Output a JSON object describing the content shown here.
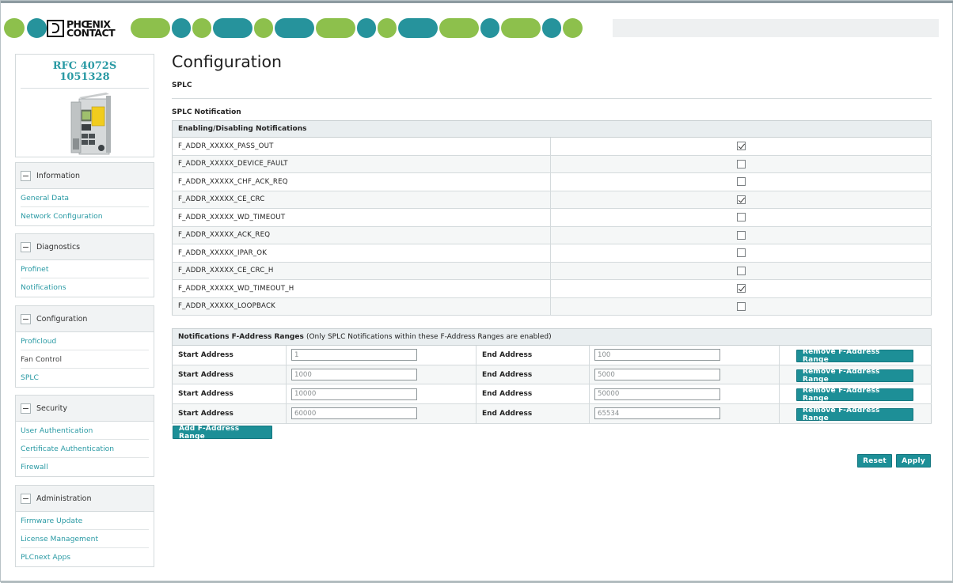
{
  "brand": {
    "logo_text_line1": "PHŒNIX",
    "logo_text_line2": "CONTACT",
    "colors": {
      "green": "#8dc04c",
      "teal": "#26939c",
      "link": "#2a9aa4",
      "button": "#1d8f97"
    }
  },
  "device": {
    "model": "RFC 4072S",
    "article": "1051328"
  },
  "sidebar": {
    "groups": [
      {
        "title": "Information",
        "items": [
          {
            "label": "General Data",
            "link": true
          },
          {
            "label": "Network Configuration",
            "link": true
          }
        ]
      },
      {
        "title": "Diagnostics",
        "items": [
          {
            "label": "Profinet",
            "link": true
          },
          {
            "label": "Notifications",
            "link": true
          }
        ]
      },
      {
        "title": "Configuration",
        "items": [
          {
            "label": "Proficloud",
            "link": true
          },
          {
            "label": "Fan Control",
            "link": false
          },
          {
            "label": "SPLC",
            "link": true
          }
        ]
      },
      {
        "title": "Security",
        "items": [
          {
            "label": "User Authentication",
            "link": true
          },
          {
            "label": "Certificate Authentication",
            "link": true
          },
          {
            "label": "Firewall",
            "link": true
          }
        ]
      },
      {
        "title": "Administration",
        "items": [
          {
            "label": "Firmware Update",
            "link": true
          },
          {
            "label": "License Management",
            "link": true
          },
          {
            "label": "PLCnext Apps",
            "link": true
          }
        ]
      }
    ]
  },
  "main": {
    "title": "Configuration",
    "section": "SPLC",
    "subsection": "SPLC Notification",
    "notifications": {
      "header": "Enabling/Disabling Notifications",
      "rows": [
        {
          "name": "F_ADDR_XXXXX_PASS_OUT",
          "checked": true
        },
        {
          "name": "F_ADDR_XXXXX_DEVICE_FAULT",
          "checked": false
        },
        {
          "name": "F_ADDR_XXXXX_CHF_ACK_REQ",
          "checked": false
        },
        {
          "name": "F_ADDR_XXXXX_CE_CRC",
          "checked": true
        },
        {
          "name": "F_ADDR_XXXXX_WD_TIMEOUT",
          "checked": false
        },
        {
          "name": "F_ADDR_XXXXX_ACK_REQ",
          "checked": false
        },
        {
          "name": "F_ADDR_XXXXX_IPAR_OK",
          "checked": false
        },
        {
          "name": "F_ADDR_XXXXX_CE_CRC_H",
          "checked": false
        },
        {
          "name": "F_ADDR_XXXXX_WD_TIMEOUT_H",
          "checked": true
        },
        {
          "name": "F_ADDR_XXXXX_LOOPBACK",
          "checked": false
        }
      ]
    },
    "ranges": {
      "header_bold": "Notifications F-Address Ranges",
      "header_note": "(Only SPLC Notifications within these F-Address Ranges are enabled)",
      "start_label": "Start Address",
      "end_label": "End Address",
      "remove_label": "Remove F-Address Range",
      "rows": [
        {
          "start": "1",
          "end": "100"
        },
        {
          "start": "1000",
          "end": "5000"
        },
        {
          "start": "10000",
          "end": "50000"
        },
        {
          "start": "60000",
          "end": "65534"
        }
      ]
    },
    "add_range_label": "Add F-Address Range",
    "reset_label": "Reset",
    "apply_label": "Apply"
  }
}
